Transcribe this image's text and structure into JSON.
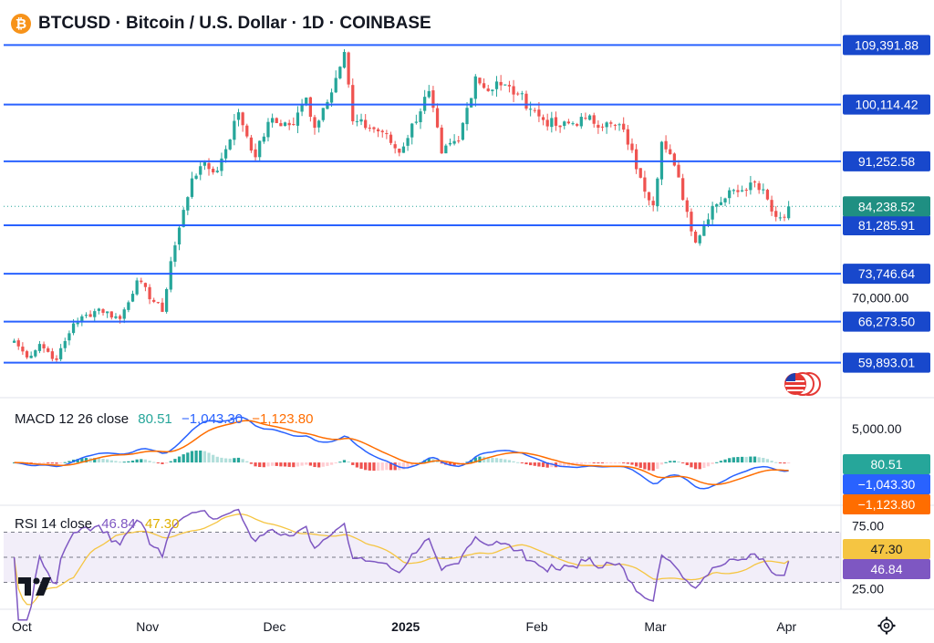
{
  "header": {
    "title": "BTCUSD · Bitcoin / U.S. Dollar · 1D · COINBASE",
    "logo_symbol": "₿",
    "logo_color": "#f7931a"
  },
  "colors": {
    "up": "#26a69a",
    "down": "#ef5350",
    "level": "#2962ff",
    "macd_line": "#2962ff",
    "signal_line": "#ff6d00",
    "rsi_line": "#7e57c2",
    "rsi_ma": "#f5c542",
    "label_bg": "#1848cc",
    "current_price_bg": "#1f8f82"
  },
  "chart_data": [
    {
      "type": "candlestick",
      "title": "BTCUSD · Bitcoin / U.S. Dollar · 1D · COINBASE",
      "x_tick_labels": [
        "Oct",
        "Nov",
        "Dec",
        "2025",
        "Feb",
        "Mar",
        "Apr"
      ],
      "x_range": [
        "2024-09-28",
        "2025-04-13"
      ],
      "ylim": [
        55000,
        111000
      ],
      "y_tick_labels": [
        "70,000.00"
      ],
      "horizontal_levels": [
        109391.88,
        100114.42,
        91252.58,
        81285.91,
        73746.64,
        66273.5,
        59893.01
      ],
      "level_labels": [
        "109,391.88",
        "100,114.42",
        "91,252.58",
        "81,285.91",
        "73,746.64",
        "66,273.50",
        "59,893.01"
      ],
      "current_price": 84238.52,
      "current_price_label": "84,238.52",
      "close_anchors": [
        [
          "2024-09-30",
          63300
        ],
        [
          "2024-10-03",
          60700
        ],
        [
          "2024-10-06",
          62800
        ],
        [
          "2024-10-10",
          60300
        ],
        [
          "2024-10-14",
          66000
        ],
        [
          "2024-10-20",
          68300
        ],
        [
          "2024-10-25",
          66700
        ],
        [
          "2024-10-29",
          72700
        ],
        [
          "2024-11-04",
          67800
        ],
        [
          "2024-11-06",
          75700
        ],
        [
          "2024-11-11",
          88600
        ],
        [
          "2024-11-13",
          90500
        ],
        [
          "2024-11-17",
          89800
        ],
        [
          "2024-11-22",
          98900
        ],
        [
          "2024-11-26",
          91900
        ],
        [
          "2024-11-29",
          97400
        ],
        [
          "2024-12-05",
          97000
        ],
        [
          "2024-12-08",
          101200
        ],
        [
          "2024-12-10",
          96500
        ],
        [
          "2024-12-16",
          106000
        ],
        [
          "2024-12-17",
          108300
        ],
        [
          "2024-12-19",
          97500
        ],
        [
          "2024-12-26",
          95800
        ],
        [
          "2024-12-30",
          92600
        ],
        [
          "2025-01-06",
          102200
        ],
        [
          "2025-01-09",
          92500
        ],
        [
          "2025-01-13",
          94500
        ],
        [
          "2025-01-17",
          104500
        ],
        [
          "2025-01-20",
          102200
        ],
        [
          "2025-01-22",
          103700
        ],
        [
          "2025-01-27",
          101700
        ],
        [
          "2025-02-02",
          97700
        ],
        [
          "2025-02-06",
          96600
        ],
        [
          "2025-02-12",
          97900
        ],
        [
          "2025-02-21",
          96200
        ],
        [
          "2025-02-25",
          88700
        ],
        [
          "2025-02-28",
          84400
        ],
        [
          "2025-03-02",
          94300
        ],
        [
          "2025-03-05",
          90600
        ],
        [
          "2025-03-10",
          78600
        ],
        [
          "2025-03-14",
          84300
        ],
        [
          "2025-03-19",
          86800
        ],
        [
          "2025-03-24",
          88000
        ],
        [
          "2025-03-26",
          86900
        ],
        [
          "2025-03-29",
          82600
        ],
        [
          "2025-03-31",
          82500
        ],
        [
          "2025-04-01",
          84238.52
        ]
      ]
    },
    {
      "type": "line",
      "title": "MACD 12 26 close",
      "values_shown": [
        "80.51",
        "−1,043.30",
        "−1,123.80"
      ],
      "y_tick_labels": [
        "5,000.00"
      ],
      "series": [
        {
          "name": "MACD",
          "last": -1043.3
        },
        {
          "name": "Signal",
          "last": -1123.8
        },
        {
          "name": "Histogram",
          "last": 80.51
        }
      ]
    },
    {
      "type": "line",
      "title": "RSI 14 close",
      "values_shown": [
        "46.84",
        "47.30"
      ],
      "y_tick_labels": [
        "75.00",
        "25.00"
      ],
      "ylim": [
        10,
        90
      ],
      "band": [
        30,
        70
      ],
      "series": [
        {
          "name": "RSI",
          "last": 46.84
        },
        {
          "name": "RSI-based MA",
          "last": 47.3
        }
      ]
    }
  ],
  "macd_panel": {
    "label": "MACD 12 26 close",
    "hist_value": "80.51",
    "macd_value": "−1,043.30",
    "signal_value": "−1,123.80",
    "tick_5000": "5,000.00"
  },
  "rsi_panel": {
    "label": "RSI 14 close",
    "rsi_value": "46.84",
    "ma_value": "47.30",
    "tick_75": "75.00",
    "tick_25": "25.00"
  },
  "icons": {
    "tv_logo": "tradingview-logo-icon",
    "flag": "us-flag-icon",
    "settings": "gear-icon"
  }
}
